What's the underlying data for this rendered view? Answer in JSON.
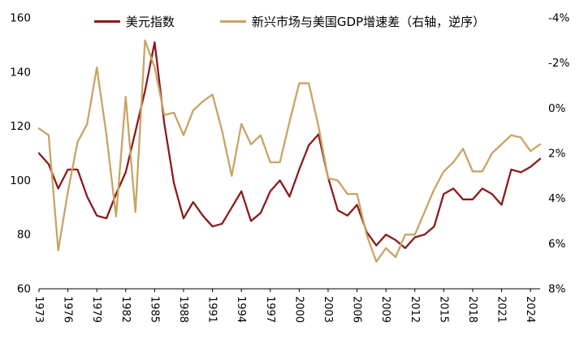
{
  "chart_data": {
    "type": "line",
    "title": "",
    "legend_position": "top",
    "grid": false,
    "x": [
      1973,
      1974,
      1975,
      1976,
      1977,
      1978,
      1979,
      1980,
      1981,
      1982,
      1983,
      1984,
      1985,
      1986,
      1987,
      1988,
      1989,
      1990,
      1991,
      1992,
      1993,
      1994,
      1995,
      1996,
      1997,
      1998,
      1999,
      2000,
      2001,
      2002,
      2003,
      2004,
      2005,
      2006,
      2007,
      2008,
      2009,
      2010,
      2011,
      2012,
      2013,
      2014,
      2015,
      2016,
      2017,
      2018,
      2019,
      2020,
      2021,
      2022,
      2023,
      2024,
      2025
    ],
    "x_ticks": [
      1973,
      1976,
      1979,
      1982,
      1985,
      1988,
      1991,
      1994,
      1997,
      2000,
      2003,
      2006,
      2009,
      2012,
      2015,
      2018,
      2021,
      2024
    ],
    "left_axis": {
      "min": 60,
      "max": 160,
      "ticks": [
        160,
        140,
        120,
        100,
        80,
        60
      ]
    },
    "right_axis": {
      "min": -4,
      "max": 8,
      "inverted": true,
      "tick_labels": [
        "-4%",
        "-2%",
        "0%",
        "2%",
        "4%",
        "6%",
        "8%"
      ],
      "tick_values": [
        -4,
        -2,
        0,
        2,
        4,
        6,
        8
      ]
    },
    "series": [
      {
        "name": "美元指数",
        "axis": "left",
        "color": "#8B1B1B",
        "values": [
          110,
          106,
          97,
          104,
          104,
          94,
          87,
          86,
          95,
          103,
          118,
          133,
          151,
          121,
          99,
          86,
          92,
          87,
          83,
          84,
          90,
          96,
          85,
          88,
          96,
          100,
          94,
          104,
          113,
          117,
          101,
          89,
          87,
          91,
          81,
          76,
          80,
          78,
          75,
          79,
          80,
          83,
          95,
          97,
          93,
          93,
          97,
          95,
          91,
          104,
          103,
          105,
          108
        ]
      },
      {
        "name": "新兴市场与美国GDP增速差（右轴，逆序）",
        "axis": "right",
        "color": "#C8A464",
        "values": [
          0.9,
          1.2,
          6.3,
          3.7,
          1.5,
          0.7,
          -1.8,
          1.2,
          4.8,
          -0.5,
          4.6,
          -3.0,
          -1.8,
          0.3,
          0.2,
          1.2,
          0.1,
          -0.3,
          -0.6,
          1.0,
          3.0,
          0.7,
          1.6,
          1.2,
          2.4,
          2.4,
          0.6,
          -1.1,
          -1.1,
          0.8,
          3.1,
          3.2,
          3.8,
          3.8,
          5.6,
          6.8,
          6.2,
          6.6,
          5.6,
          5.6,
          4.6,
          3.6,
          2.8,
          2.4,
          1.8,
          2.8,
          2.8,
          2.0,
          1.6,
          1.2,
          1.3,
          1.9,
          1.6
        ]
      }
    ]
  }
}
